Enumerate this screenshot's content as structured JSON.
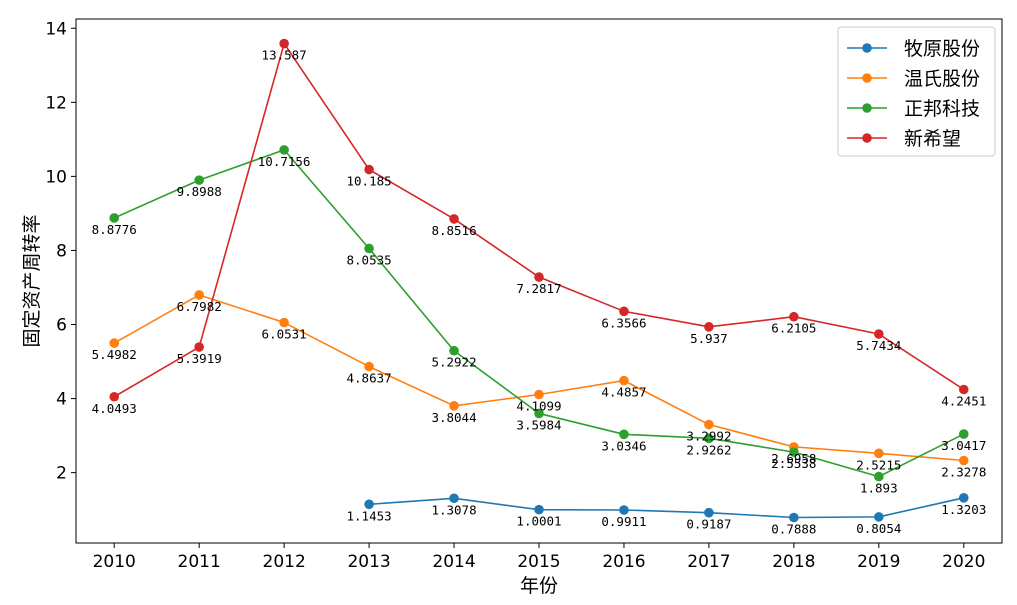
{
  "chart_data": {
    "type": "line",
    "xlabel": "年份",
    "ylabel": "固定资产周转率",
    "x": [
      2010,
      2011,
      2012,
      2013,
      2014,
      2015,
      2016,
      2017,
      2018,
      2019,
      2020
    ],
    "x_tick_labels": [
      "2010",
      "2011",
      "2012",
      "2013",
      "2014",
      "2015",
      "2016",
      "2017",
      "2018",
      "2019",
      "2020"
    ],
    "y_ticks": [
      2,
      4,
      6,
      8,
      10,
      12,
      14
    ],
    "y_tick_labels": [
      "2",
      "4",
      "6",
      "8",
      "10",
      "12",
      "14"
    ],
    "xlim": [
      2009.55,
      2020.45
    ],
    "ylim": [
      0.1,
      14.25
    ],
    "grid": false,
    "legend_position": "top-right",
    "series": [
      {
        "name": "牧原股份",
        "color": "#1f77b4",
        "values": [
          null,
          null,
          null,
          1.1453,
          1.3078,
          1.0001,
          0.9911,
          0.9187,
          0.7888,
          0.8054,
          1.3203
        ],
        "labels": [
          null,
          null,
          null,
          "1.1453",
          "1.3078",
          "1.0001",
          "0.9911",
          "0.9187",
          "0.7888",
          "0.8054",
          "1.3203"
        ]
      },
      {
        "name": "温氏股份",
        "color": "#ff7f0e",
        "values": [
          5.4982,
          6.7982,
          6.0531,
          4.8637,
          3.8044,
          4.1099,
          4.4857,
          3.2992,
          2.6958,
          2.5215,
          2.3278
        ],
        "labels": [
          "5.4982",
          "6.7982",
          "6.0531",
          "4.8637",
          "3.8044",
          "4.1099",
          "4.4857",
          "3.2992",
          "2.6958",
          "2.5215",
          "2.3278"
        ]
      },
      {
        "name": "正邦科技",
        "color": "#2ca02c",
        "values": [
          8.8776,
          9.8988,
          10.7156,
          8.0535,
          5.2922,
          3.5984,
          3.0346,
          2.9262,
          2.5538,
          1.893,
          3.0417
        ],
        "labels": [
          "8.8776",
          "9.8988",
          "10.7156",
          "8.0535",
          "5.2922",
          "3.5984",
          "3.0346",
          "2.9262",
          "2.5538",
          "1.893",
          "3.0417"
        ]
      },
      {
        "name": "新希望",
        "color": "#d62728",
        "values": [
          4.0493,
          5.3919,
          13.587,
          10.185,
          8.8516,
          7.2817,
          6.3566,
          5.937,
          6.2105,
          5.7434,
          4.2451
        ],
        "labels": [
          "4.0493",
          "5.3919",
          "13.587",
          "10.185",
          "8.8516",
          "7.2817",
          "6.3566",
          "5.937",
          "6.2105",
          "5.7434",
          "4.2451"
        ]
      }
    ]
  }
}
